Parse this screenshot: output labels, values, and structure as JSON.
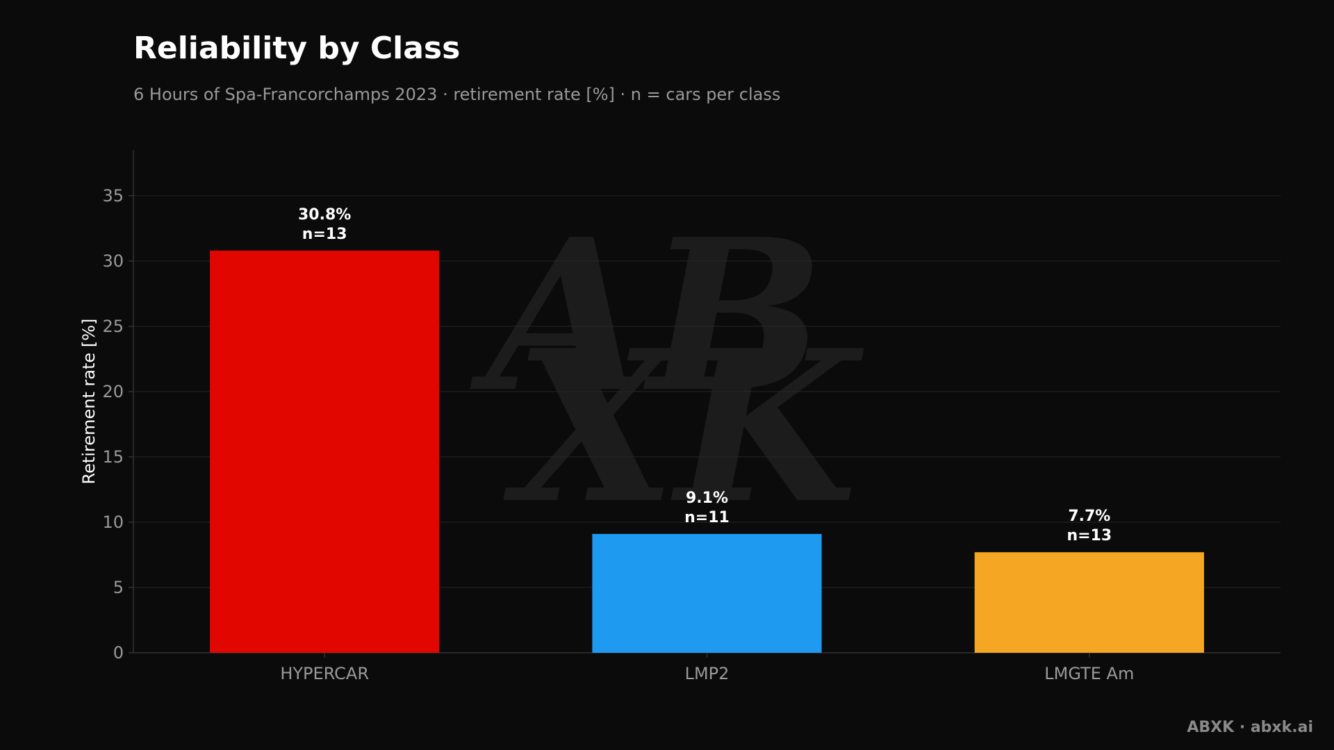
{
  "chart_data": {
    "type": "bar",
    "title": "Reliability by Class",
    "subtitle": "6 Hours of Spa-Francorchamps 2023 · retirement rate [%] · n = cars per class",
    "xlabel": "",
    "ylabel": "Retirement rate [%]",
    "ylim": [
      0,
      38.5
    ],
    "yticks": [
      0,
      5,
      10,
      15,
      20,
      25,
      30,
      35
    ],
    "grid": true,
    "legend": "none",
    "categories": [
      "HYPERCAR",
      "LMP2",
      "LMGTE Am"
    ],
    "values": [
      30.8,
      9.1,
      7.7
    ],
    "counts": [
      13,
      11,
      13
    ],
    "value_labels": [
      "30.8%",
      "9.1%",
      "7.7%"
    ],
    "count_labels": [
      "n=13",
      "n=11",
      "n=13"
    ],
    "colors": [
      "#e10600",
      "#1e9bf0",
      "#f5a623"
    ]
  },
  "watermark": {
    "text": "ABXK · abxk.ai",
    "logo_text": "ABXK"
  },
  "theme": {
    "background": "#0b0b0b",
    "grid": "#262626",
    "axis": "#333333",
    "tick_label": "#9a9a9a",
    "ylabel": "#ffffff",
    "data_label": "#ffffff",
    "logo": "#1c1c1c"
  }
}
